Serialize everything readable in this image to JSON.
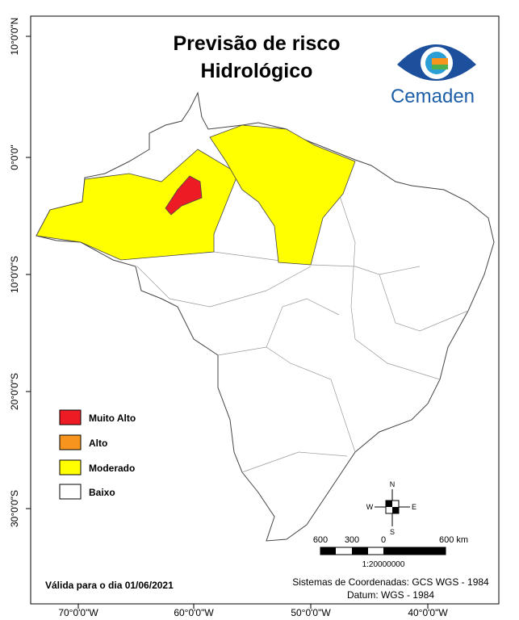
{
  "title": [
    "Previsão de risco",
    "Hidrológico"
  ],
  "logo": "Cemaden",
  "legend": [
    {
      "label": "Muito Alto",
      "color": "#ed1c24"
    },
    {
      "label": "Alto",
      "color": "#f7941d"
    },
    {
      "label": "Moderado",
      "color": "#ffff00"
    },
    {
      "label": "Baixo",
      "color": "#ffffff"
    }
  ],
  "latitude_labels": [
    "10°0'0\"N",
    "0°0'0\"",
    "10°0'0\"S",
    "20°0'0\"S",
    "30°0'0\"S"
  ],
  "longitude_labels": [
    "70°0'0\"W",
    "60°0'0\"W",
    "50°0'0\"W",
    "40°0'0\"W"
  ],
  "scale_bar": {
    "labels": [
      "600",
      "300",
      "0",
      "600 km"
    ],
    "ratio": "1:20000000"
  },
  "compass": {
    "n": "N",
    "s": "S",
    "e": "E",
    "w": "W"
  },
  "footer": {
    "valid": "Válida para o dia 01/06/2021",
    "coords": "Sistemas de Coordenadas: GCS WGS - 1984",
    "datum": "Datum: WGS - 1984"
  }
}
